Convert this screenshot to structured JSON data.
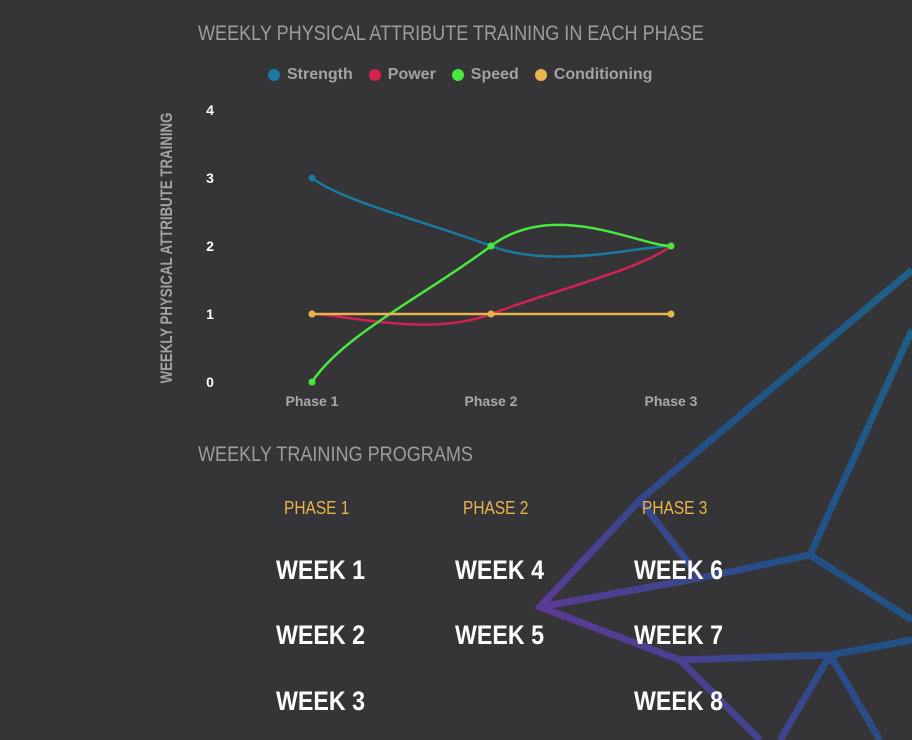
{
  "chart_title": "WEEKLY PHYSICAL ATTRIBUTE TRAINING IN EACH PHASE",
  "programs_title": "WEEKLY TRAINING PROGRAMS",
  "chart_data": {
    "type": "line",
    "title": "WEEKLY PHYSICAL ATTRIBUTE TRAINING IN EACH PHASE",
    "xlabel": "",
    "ylabel": "WEEKLY PHYSICAL ATTRIBUTE TRAINING",
    "categories": [
      "Phase 1",
      "Phase 2",
      "Phase 3"
    ],
    "ylim": [
      0,
      4
    ],
    "yticks": [
      0,
      1,
      2,
      3,
      4
    ],
    "grid": false,
    "legend_position": "top",
    "series": [
      {
        "name": "Strength",
        "color": "#1a7aa0",
        "values": [
          3,
          2,
          2
        ]
      },
      {
        "name": "Power",
        "color": "#d2234f",
        "values": [
          1,
          1,
          2
        ]
      },
      {
        "name": "Speed",
        "color": "#48e83f",
        "values": [
          0,
          2,
          2
        ]
      },
      {
        "name": "Conditioning",
        "color": "#e9b44c",
        "values": [
          1,
          1,
          1
        ]
      }
    ]
  },
  "programs": [
    {
      "phase": "PHASE 1",
      "weeks": [
        "WEEK 1",
        "WEEK 2",
        "WEEK 3"
      ]
    },
    {
      "phase": "PHASE 2",
      "weeks": [
        "WEEK 4",
        "WEEK 5"
      ]
    },
    {
      "phase": "PHASE 3",
      "weeks": [
        "WEEK 6",
        "WEEK 7",
        "WEEK 8"
      ]
    }
  ],
  "colors": {
    "background": "#353436",
    "phase_heading": "#e9b44c",
    "decor_blue": "#1f5f86",
    "decor_purple": "#5b3a96"
  }
}
